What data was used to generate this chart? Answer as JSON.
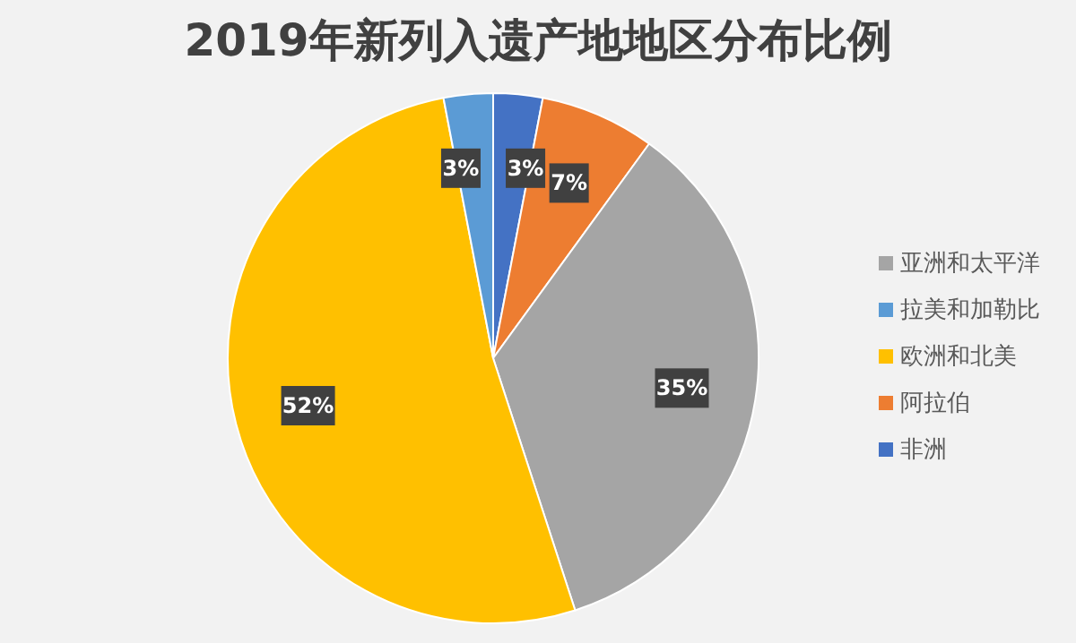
{
  "chart_data": {
    "type": "pie",
    "title": "2019年新列入遗产地地区分布比例",
    "categories": [
      "非洲",
      "阿拉伯",
      "亚洲和太平洋",
      "欧洲和北美",
      "拉美和加勒比"
    ],
    "values": [
      3,
      7,
      35,
      52,
      3
    ],
    "colors": [
      "#4472c4",
      "#ed7d31",
      "#a5a5a5",
      "#ffc000",
      "#5b9bd5"
    ],
    "value_labels": [
      "3%",
      "7%",
      "35%",
      "52%",
      "3%"
    ],
    "legend": "right"
  }
}
